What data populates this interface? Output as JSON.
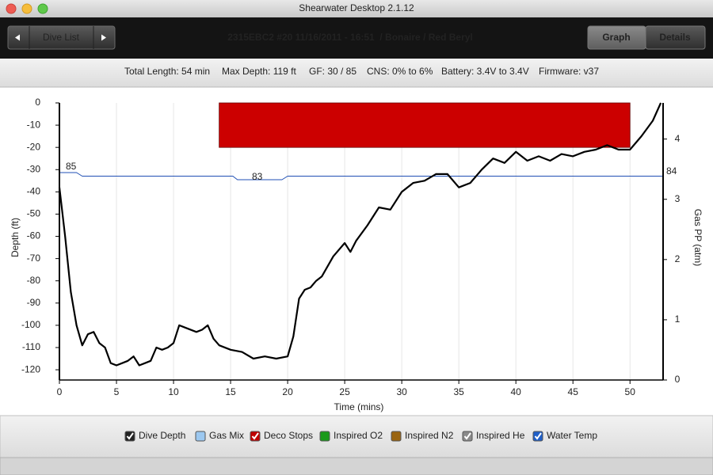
{
  "window": {
    "title": "Shearwater Desktop 2.1.12"
  },
  "toolbar": {
    "nav_label": "Dive List",
    "heading": "2315EBC2 #20 11/16/2011 - 16:51  / Bonaire / Red Beryl",
    "tabs": [
      "Graph",
      "Details"
    ]
  },
  "info": [
    "Total Length: 54 min",
    "Max Depth: 119 ft",
    "GF: 30 / 85",
    "CNS: 0% to 6%",
    "Battery: 3.4V to 3.4V",
    "Firmware: v37"
  ],
  "chart_data": {
    "type": "line",
    "xlabel": "Time (mins)",
    "ylabel": "Depth (ft)",
    "y2label": "Gas PP (atm)",
    "xlim": [
      0,
      52.9
    ],
    "xticks": [
      0,
      5,
      10,
      15,
      20,
      25,
      30,
      35,
      40,
      45,
      50
    ],
    "ylim": [
      -124.6,
      0
    ],
    "yticks": [
      0,
      -10,
      -20,
      -30,
      -40,
      -50,
      -60,
      -70,
      -80,
      -90,
      -100,
      -110,
      -120
    ],
    "y2lim": [
      0,
      4.6
    ],
    "y2ticks": [
      0,
      1,
      2,
      3,
      4
    ],
    "grid": true,
    "series": [
      {
        "color": "#000000",
        "x": [
          0,
          0.5,
          1,
          1.5,
          2,
          2.5,
          3,
          3.5,
          4,
          4.5,
          5,
          5.5,
          6,
          6.5,
          7,
          7.5,
          8,
          8.5,
          9,
          9.5,
          10,
          10.5,
          11,
          12,
          12.5,
          13,
          13.5,
          14,
          15,
          16,
          17,
          18,
          19,
          20,
          20.5,
          21,
          21.5,
          22,
          22.5,
          23,
          24,
          25,
          25.5,
          26,
          27,
          28,
          29,
          30,
          31,
          32,
          33,
          34,
          35,
          36,
          37,
          38,
          39,
          40,
          41,
          42,
          43,
          44,
          45,
          46,
          47,
          48,
          49,
          50,
          51,
          52,
          52.7
        ],
        "values": [
          -38,
          -60,
          -85,
          -100,
          -109,
          -104,
          -103,
          -108,
          -110,
          -117,
          -118,
          -117,
          -116,
          -114,
          -118,
          -117,
          -116,
          -110,
          -111,
          -110,
          -108,
          -100,
          -101,
          -103,
          -102,
          -100,
          -106,
          -109,
          -111,
          -112,
          -115,
          -114,
          -115,
          -114,
          -105,
          -88,
          -84,
          -83,
          -80,
          -78,
          -69,
          -63,
          -67,
          -62,
          -55,
          -47,
          -48,
          -40,
          -36,
          -35,
          -32,
          -32,
          -38,
          -36,
          -30,
          -25,
          -27,
          -22,
          -26,
          -24,
          -26,
          -23,
          -24,
          -22,
          -21,
          -19,
          -21,
          -21,
          -15,
          -8,
          0
        ]
      },
      {
        "color": "#1f4fb4",
        "x": [
          0,
          1.5,
          2,
          15.2,
          15.6,
          19.5,
          20,
          52.9
        ],
        "values": [
          85,
          85,
          84,
          84,
          83,
          83,
          84,
          84
        ]
      }
    ],
    "deco_stops": [
      {
        "start": 14,
        "end": 50,
        "depth": -20,
        "color": "#cc0000"
      }
    ]
  },
  "legend": [
    {
      "label": "Dive Depth",
      "color": "#222222",
      "checked": true
    },
    {
      "label": "Gas Mix",
      "color": "#9cc8f0",
      "checked": false
    },
    {
      "label": "Deco Stops",
      "color": "#c00000",
      "checked": true
    },
    {
      "label": "Inspired O2",
      "color": "#1a9a1a",
      "checked": false
    },
    {
      "label": "Inspired N2",
      "color": "#9a6410",
      "checked": false
    },
    {
      "label": "Inspired He",
      "color": "#8a8a8a",
      "checked": true
    },
    {
      "label": "Water Temp",
      "color": "#1f5fc8",
      "checked": true
    }
  ]
}
